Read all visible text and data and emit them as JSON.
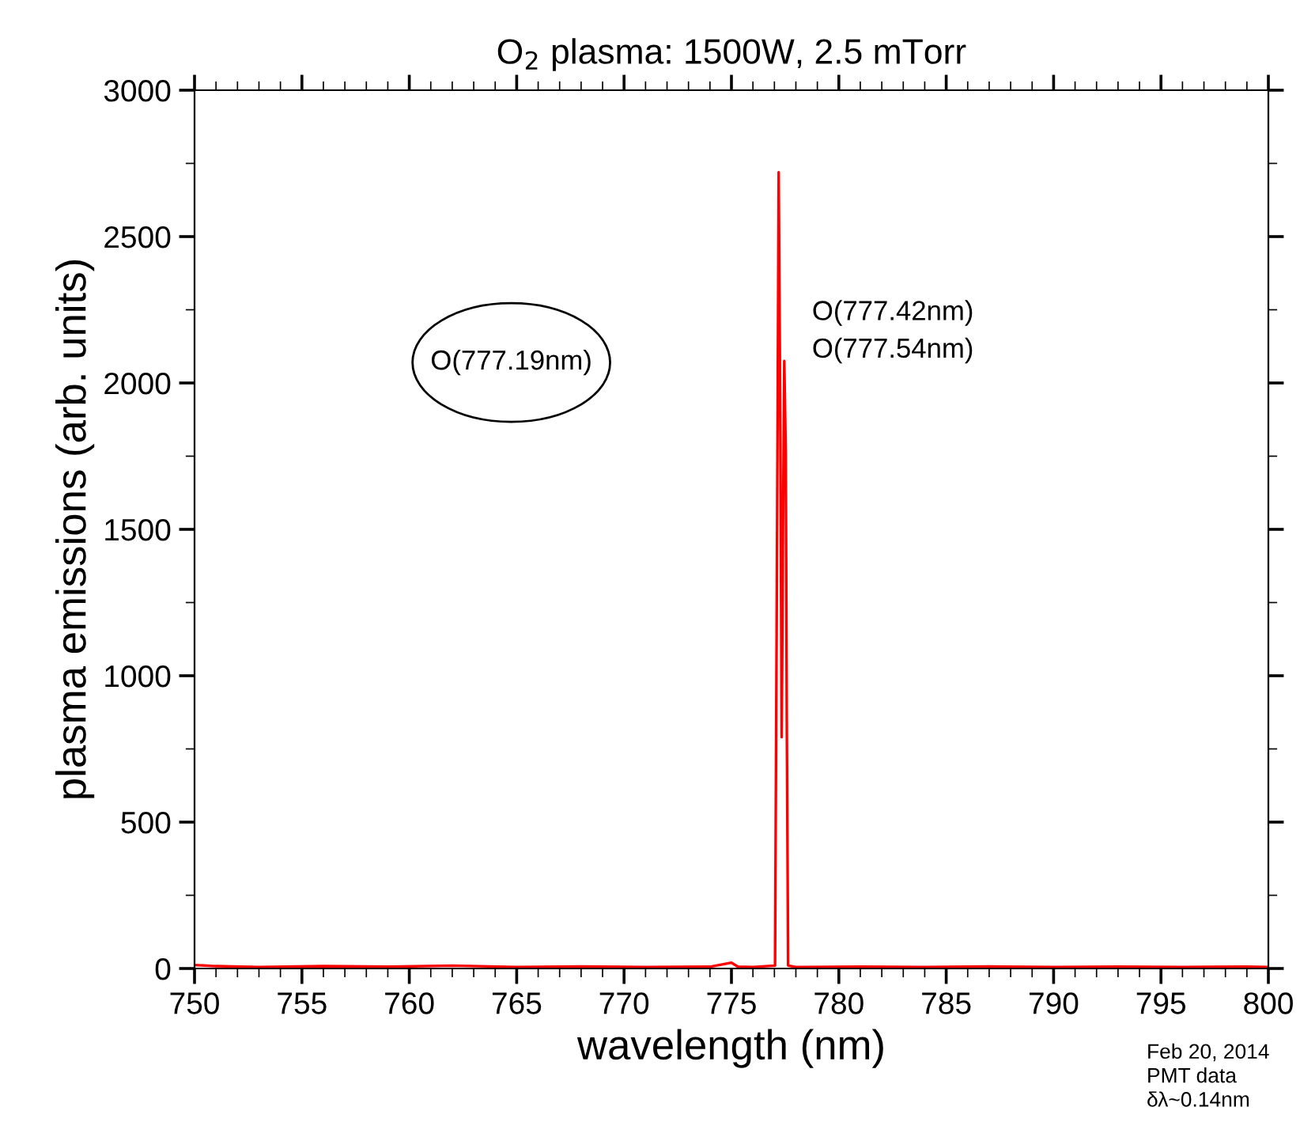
{
  "chart_data": {
    "type": "line",
    "title": "O$_{2}$ plasma: 1500W, 2.5 mTorr",
    "xlabel": "wavelength (nm)",
    "ylabel": "plasma emissions (arb. units)",
    "x": [
      750,
      751,
      753,
      756,
      759,
      762,
      765,
      768,
      771,
      774,
      775,
      775.3,
      776,
      777.03,
      777.12,
      777.2,
      777.28,
      777.34,
      777.4,
      777.46,
      777.53,
      777.58,
      777.64,
      778,
      781,
      784,
      787,
      790,
      793,
      796,
      799,
      800
    ],
    "series": [
      {
        "color": "#ff0000",
        "values": [
          12,
          8,
          5,
          8,
          6,
          10,
          5,
          7,
          5,
          6,
          20,
          6,
          5,
          10,
          1400,
          2720,
          1800,
          790,
          1500,
          2075,
          1760,
          800,
          10,
          5,
          6,
          5,
          7,
          5,
          6,
          5,
          6,
          5
        ]
      }
    ],
    "xlim": [
      750,
      800
    ],
    "xticks": [
      750,
      755,
      760,
      765,
      770,
      775,
      780,
      785,
      790,
      795,
      800
    ],
    "ylim": [
      0,
      3000
    ],
    "yticks": [
      0,
      500,
      1000,
      1500,
      2000,
      2500,
      3000
    ],
    "grid": false,
    "legend": false,
    "marker": "none",
    "line_style": "solid",
    "annotations": [
      "O(777.19nm)",
      "O(777.42nm)\nO(777.54nm)",
      "Feb 20, 2014\nPMT data\nδλ~0.14nm"
    ]
  }
}
